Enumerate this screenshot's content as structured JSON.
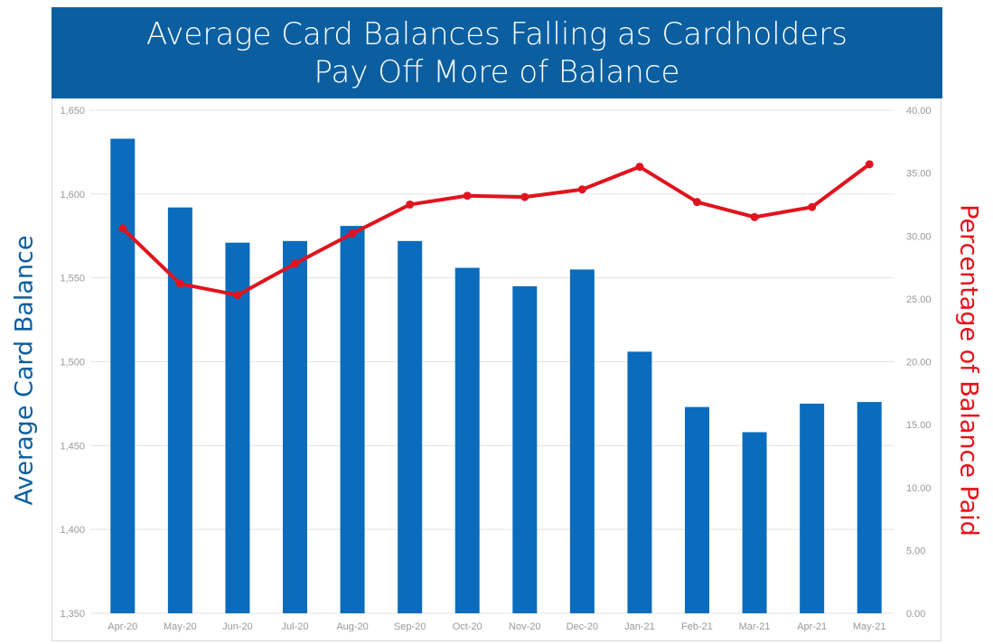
{
  "chart_data": {
    "type": "bar+line",
    "title": [
      "Average Card Balances Falling as Cardholders",
      "Pay Off More of Balance"
    ],
    "categories": [
      "Apr-20",
      "May-20",
      "Jun-20",
      "Jul-20",
      "Aug-20",
      "Sep-20",
      "Oct-20",
      "Nov-20",
      "Dec-20",
      "Jan-21",
      "Feb-21",
      "Mar-21",
      "Apr-21",
      "May-21"
    ],
    "bar_series": {
      "axis": "left",
      "color": "#0b6cbd",
      "values": [
        1633,
        1592,
        1571,
        1572,
        1581,
        1572,
        1556,
        1545,
        1555,
        1506,
        1473,
        1458,
        1475,
        1476
      ]
    },
    "line_series": {
      "axis": "right",
      "color": "#e0141e",
      "values": [
        30.6,
        26.2,
        25.3,
        27.8,
        30.2,
        32.5,
        33.2,
        33.1,
        33.7,
        35.5,
        32.7,
        31.5,
        32.3,
        35.7
      ]
    },
    "ylabel": "Average Card Balance",
    "y2label": "Percentage of Balance Paid",
    "ylim": [
      1350,
      1650
    ],
    "y2lim": [
      0,
      40
    ],
    "yticks": [
      "1,350",
      "1,400",
      "1,450",
      "1,500",
      "1,550",
      "1,600",
      "1,650"
    ],
    "y2ticks": [
      "0.00",
      "5.00",
      "10.00",
      "15.00",
      "20.00",
      "25.00",
      "30.00",
      "35.00",
      "40.00"
    ],
    "grid": true
  }
}
